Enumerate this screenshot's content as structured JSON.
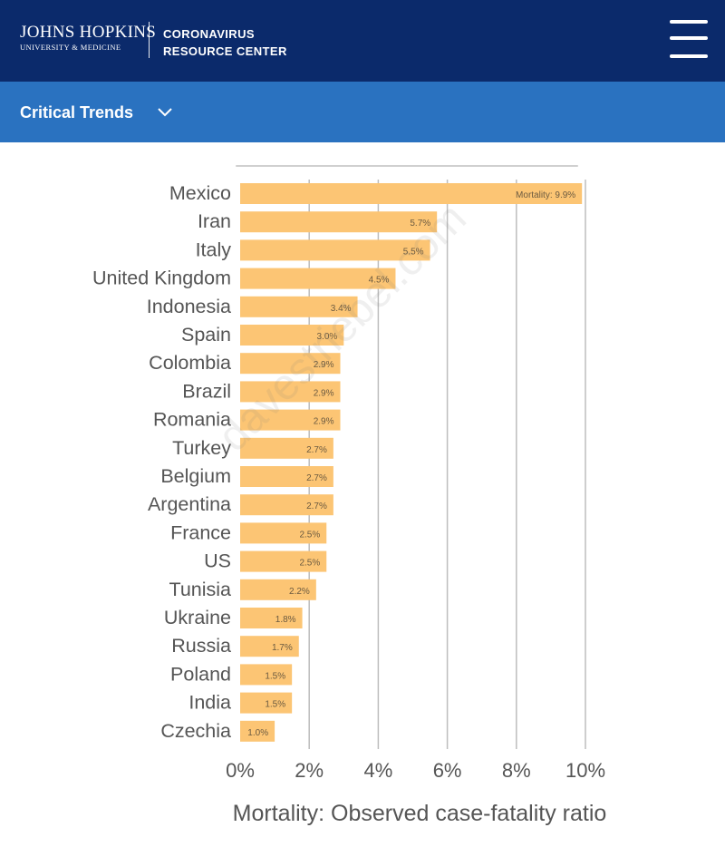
{
  "header": {
    "logo_line1": "JOHNS HOPKINS",
    "logo_line2": "UNIVERSITY & MEDICINE",
    "center_line1": "CORONAVIRUS",
    "center_line2": "RESOURCE CENTER",
    "menu_icon": "hamburger-menu-icon"
  },
  "subnav": {
    "label": "Critical Trends",
    "icon": "chevron-down-icon"
  },
  "watermark": "davestriebel.com",
  "colors": {
    "header_bg": "#0b2a6b",
    "subnav_bg": "#2a72c0",
    "bar": "#fcc574",
    "gridline": "#bdbdbd"
  },
  "chart_data": {
    "type": "bar",
    "orientation": "horizontal",
    "categories": [
      "Mexico",
      "Iran",
      "Italy",
      "United Kingdom",
      "Indonesia",
      "Spain",
      "Colombia",
      "Brazil",
      "Romania",
      "Turkey",
      "Belgium",
      "Argentina",
      "France",
      "US",
      "Tunisia",
      "Ukraine",
      "Russia",
      "Poland",
      "India",
      "Czechia"
    ],
    "values": [
      9.9,
      5.7,
      5.5,
      4.5,
      3.4,
      3.0,
      2.9,
      2.9,
      2.9,
      2.7,
      2.7,
      2.7,
      2.5,
      2.5,
      2.2,
      1.8,
      1.7,
      1.5,
      1.5,
      1.0
    ],
    "data_labels": [
      "Mortality: 9.9%",
      "5.7%",
      "5.5%",
      "4.5%",
      "3.4%",
      "3.0%",
      "2.9%",
      "2.9%",
      "2.9%",
      "2.7%",
      "2.7%",
      "2.7%",
      "2.5%",
      "2.5%",
      "2.2%",
      "1.8%",
      "1.7%",
      "1.5%",
      "1.5%",
      "1.0%"
    ],
    "xlim": [
      0,
      10
    ],
    "xticks": [
      "0%",
      "2%",
      "4%",
      "6%",
      "8%",
      "10%"
    ],
    "xlabel": "Mortality: Observed case-fatality ratio",
    "grid": true
  }
}
